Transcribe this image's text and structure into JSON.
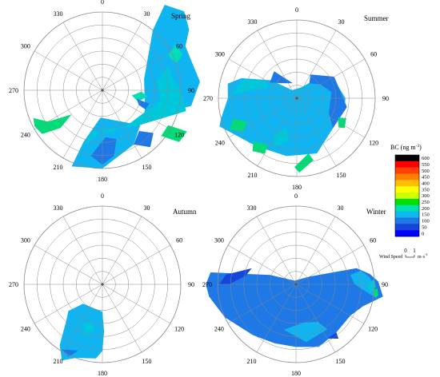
{
  "chart_data": {
    "type": "polar-contour",
    "angle_labels": [
      "0",
      "30",
      "60",
      "90",
      "120",
      "150",
      "180",
      "210",
      "240",
      "270",
      "300",
      "330"
    ],
    "panels": [
      {
        "title": "Spring",
        "patches": [
          {
            "level": "125-150",
            "color": "#0fb4f0",
            "polygon": [
              [
                202,
                1.05
              ],
              [
                200,
                0.7
              ],
              [
                184,
                0.35
              ],
              [
                140,
                0.55
              ],
              [
                110,
                0.85
              ],
              [
                100,
                1.15
              ],
              [
                85,
                1.25
              ],
              [
                74,
                1.2
              ],
              [
                62,
                1.2
              ],
              [
                55,
                1.35
              ],
              [
                46,
                1.45
              ],
              [
                36,
                1.35
              ],
              [
                40,
                1.0
              ],
              [
                75,
                0.55
              ],
              [
                115,
                0.6
              ],
              [
                150,
                0.8
              ],
              [
                180,
                1.0
              ]
            ]
          },
          {
            "level": "150-175",
            "color": "#00c8dc",
            "polygon": [
              [
                200,
                0.78
              ],
              [
                178,
                0.5
              ],
              [
                138,
                0.62
              ],
              [
                112,
                0.9
              ],
              [
                104,
                1.1
              ],
              [
                90,
                1.0
              ],
              [
                80,
                0.9
              ],
              [
                70,
                0.9
              ],
              [
                80,
                0.7
              ],
              [
                100,
                0.75
              ],
              [
                140,
                0.55
              ],
              [
                168,
                0.55
              ],
              [
                195,
                0.55
              ]
            ]
          },
          {
            "level": "175-200",
            "color": "#00e0b8",
            "polygon": [
              [
                108,
                0.48
              ],
              [
                98,
                0.58
              ],
              [
                92,
                0.5
              ],
              [
                100,
                0.38
              ]
            ]
          },
          {
            "level": "175-200",
            "color": "#00e0b8",
            "polygon": [
              [
                70,
                1.0
              ],
              [
                62,
                0.95
              ],
              [
                58,
                1.1
              ],
              [
                66,
                1.12
              ]
            ]
          },
          {
            "level": "200-250",
            "color": "#00dc78",
            "polygon": [
              [
                248,
                0.95
              ],
              [
                240,
                0.8
              ],
              [
                232,
                0.5
              ],
              [
                228,
                0.72
              ],
              [
                234,
                0.95
              ],
              [
                242,
                0.98
              ]
            ]
          },
          {
            "level": "200-250",
            "color": "#00dc78",
            "polygon": [
              [
                128,
                0.95
              ],
              [
                118,
                0.95
              ],
              [
                116,
                1.2
              ],
              [
                124,
                1.18
              ]
            ]
          },
          {
            "level": "100-125",
            "color": "#1e78e6",
            "polygon": [
              [
                190,
                0.85
              ],
              [
                176,
                0.6
              ],
              [
                164,
                0.65
              ],
              [
                170,
                0.85
              ],
              [
                180,
                0.95
              ]
            ]
          },
          {
            "level": "100-125",
            "color": "#1e78e6",
            "polygon": [
              [
                150,
                0.8
              ],
              [
                138,
                0.7
              ],
              [
                130,
                0.85
              ],
              [
                140,
                0.95
              ]
            ]
          },
          {
            "level": "100-125",
            "color": "#1e78e6",
            "polygon": [
              [
                112,
                0.5
              ],
              [
                104,
                0.45
              ],
              [
                106,
                0.62
              ],
              [
                114,
                0.6
              ]
            ]
          }
        ]
      },
      {
        "title": "Summer",
        "patches": [
          {
            "level": "125-150",
            "color": "#0fb4f0",
            "polygon": [
              [
                250,
                1.05
              ],
              [
                220,
                0.8
              ],
              [
                190,
                0.75
              ],
              [
                160,
                0.75
              ],
              [
                130,
                0.6
              ],
              [
                118,
                0.55
              ],
              [
                100,
                0.62
              ],
              [
                90,
                0.62
              ],
              [
                74,
                0.55
              ],
              [
                48,
                0.42
              ],
              [
                22,
                0.15
              ],
              [
                330,
                0.12
              ],
              [
                305,
                0.4
              ],
              [
                290,
                0.75
              ],
              [
                282,
                0.9
              ],
              [
                270,
                0.88
              ],
              [
                255,
                1.0
              ]
            ]
          },
          {
            "level": "150-175",
            "color": "#00c8dc",
            "polygon": [
              [
                272,
                0.85
              ],
              [
                290,
                0.72
              ],
              [
                300,
                0.45
              ],
              [
                290,
                0.4
              ],
              [
                278,
                0.65
              ]
            ]
          },
          {
            "level": "150-175",
            "color": "#00c8dc",
            "polygon": [
              [
                212,
                0.55
              ],
              [
                200,
                0.4
              ],
              [
                190,
                0.55
              ],
              [
                205,
                0.68
              ]
            ]
          },
          {
            "level": "100-125",
            "color": "#1e78e6",
            "polygon": [
              [
                130,
                0.6
              ],
              [
                115,
                0.45
              ],
              [
                80,
                0.45
              ],
              [
                60,
                0.35
              ],
              [
                40,
                0.25
              ],
              [
                30,
                0.35
              ],
              [
                60,
                0.55
              ],
              [
                100,
                0.65
              ]
            ]
          },
          {
            "level": "100-125",
            "color": "#1e78e6",
            "polygon": [
              [
                300,
                0.4
              ],
              [
                320,
                0.25
              ],
              [
                345,
                0.2
              ],
              [
                320,
                0.45
              ]
            ]
          },
          {
            "level": "200-250",
            "color": "#00dc78",
            "polygon": [
              [
                252,
                0.85
              ],
              [
                245,
                0.7
              ],
              [
                238,
                0.8
              ],
              [
                245,
                0.95
              ]
            ]
          },
          {
            "level": "200-250",
            "color": "#00dc78",
            "polygon": [
              [
                225,
                0.78
              ],
              [
                212,
                0.7
              ],
              [
                210,
                0.82
              ],
              [
                220,
                0.88
              ]
            ]
          },
          {
            "level": "200-250",
            "color": "#00dc78",
            "polygon": [
              [
                182,
                0.88
              ],
              [
                168,
                0.72
              ],
              [
                165,
                0.82
              ],
              [
                178,
                0.95
              ]
            ]
          },
          {
            "level": "200-250",
            "color": "#00dc78",
            "polygon": [
              [
                125,
                0.65
              ],
              [
                115,
                0.58
              ],
              [
                112,
                0.68
              ],
              [
                122,
                0.72
              ]
            ]
          }
        ]
      },
      {
        "title": "Autumn",
        "patches": [
          {
            "level": "125-150",
            "color": "#0fb4f0",
            "polygon": [
              [
                180,
                0.35
              ],
              [
                178,
                0.6
              ],
              [
                180,
                0.85
              ],
              [
                185,
                0.95
              ],
              [
                200,
                1.0
              ],
              [
                208,
                1.1
              ],
              [
                215,
                0.95
              ],
              [
                225,
                0.65
              ],
              [
                232,
                0.55
              ],
              [
                225,
                0.35
              ]
            ]
          },
          {
            "level": "150-175",
            "color": "#00c8dc",
            "polygon": [
              [
                195,
                0.5
              ],
              [
                190,
                0.6
              ],
              [
                200,
                0.7
              ],
              [
                205,
                0.55
              ]
            ]
          },
          {
            "level": "100-125",
            "color": "#1e78e6",
            "polygon": [
              [
                200,
                0.9
              ],
              [
                205,
                1.02
              ],
              [
                212,
                0.98
              ]
            ]
          }
        ]
      },
      {
        "title": "Winter",
        "patches": [
          {
            "level": "100-125",
            "color": "#1e78e6",
            "polygon": [
              [
                88,
                1.05
              ],
              [
                98,
                1.12
              ],
              [
                108,
                0.9
              ],
              [
                120,
                0.8
              ],
              [
                140,
                0.8
              ],
              [
                160,
                0.85
              ],
              [
                180,
                0.8
              ],
              [
                200,
                0.8
              ],
              [
                220,
                0.85
              ],
              [
                245,
                1.0
              ],
              [
                262,
                1.12
              ],
              [
                270,
                1.15
              ],
              [
                278,
                1.1
              ],
              [
                290,
                0.35
              ],
              [
                340,
                0.05
              ],
              [
                60,
                0.2
              ],
              [
                75,
                0.8
              ],
              [
                82,
                0.95
              ]
            ]
          },
          {
            "level": "125-150",
            "color": "#0fb4f0",
            "polygon": [
              [
                100,
                1.05
              ],
              [
                96,
                0.9
              ],
              [
                90,
                0.75
              ],
              [
                80,
                0.7
              ],
              [
                78,
                0.85
              ],
              [
                85,
                0.95
              ]
            ]
          },
          {
            "level": "125-150",
            "color": "#0fb4f0",
            "polygon": [
              [
                170,
                0.5
              ],
              [
                150,
                0.55
              ],
              [
                145,
                0.7
              ],
              [
                170,
                0.75
              ],
              [
                195,
                0.6
              ]
            ]
          },
          {
            "level": "150-175",
            "color": "#00c8dc",
            "polygon": [
              [
                96,
                0.96
              ],
              [
                90,
                0.9
              ],
              [
                86,
                1.0
              ],
              [
                92,
                1.02
              ]
            ]
          },
          {
            "level": "200-250",
            "color": "#00dc78",
            "polygon": [
              [
                99,
                1.02
              ],
              [
                94,
                0.98
              ],
              [
                93,
                1.04
              ],
              [
                98,
                1.06
              ]
            ]
          },
          {
            "level": "75-100",
            "color": "#1446dc",
            "polygon": [
              [
                270,
                0.98
              ],
              [
                278,
                0.9
              ],
              [
                290,
                0.6
              ],
              [
                280,
                0.65
              ],
              [
                270,
                0.85
              ]
            ]
          },
          {
            "level": "75-100",
            "color": "#1446dc",
            "polygon": [
              [
                150,
                0.8
              ],
              [
                140,
                0.8
              ],
              [
                142,
                0.88
              ]
            ]
          }
        ]
      }
    ],
    "legend": {
      "title": "BC (ng m",
      "title_sup": "-3",
      "title_close": ")",
      "ticks": [
        "600",
        "550",
        "500",
        "450",
        "400",
        "350",
        "300",
        "250",
        "200",
        "150",
        "100",
        "50",
        "0"
      ],
      "colors": [
        "#000000",
        "#ff0000",
        "#ff4000",
        "#ff8000",
        "#ffbf00",
        "#ffff00",
        "#ccff00",
        "#00e000",
        "#00e0b0",
        "#10b8f0",
        "#1e78e6",
        "#1446dc",
        "#0000ff"
      ]
    },
    "wind_speed": {
      "label": "Wind Speed",
      "min": "0",
      "max": "1",
      "unit": "m·s",
      "unit_sup": "-1"
    }
  }
}
